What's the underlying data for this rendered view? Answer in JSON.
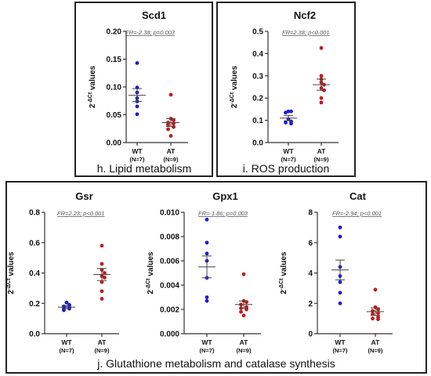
{
  "captions": {
    "h": "h. Lipid metabolism",
    "i": "i. ROS production",
    "j": "j. Glutathione metabolism and catalase synthesis"
  },
  "colors": {
    "wt": "#1a1adc",
    "at": "#c41a1a",
    "axis": "#333333",
    "text": "#111111"
  },
  "chart_data": [
    {
      "id": "scd1",
      "type": "scatter",
      "title": "Scd1",
      "ylabel_base": "2",
      "ylabel_sup": "-ΔCt",
      "ylabel_rest": " values",
      "annotation": "FR=-2.38; p=0.003",
      "ylim": [
        0,
        0.2
      ],
      "yticks": [
        0.0,
        0.05,
        0.1,
        0.15,
        0.2
      ],
      "ytick_labels": [
        "0.00",
        "0.05",
        "0.10",
        "0.15",
        "0.20"
      ],
      "groups": [
        {
          "name": "WT",
          "n_label": "(N=7)",
          "color_key": "wt",
          "mean": 0.085,
          "sem_low": 0.074,
          "sem_high": 0.097,
          "values": [
            0.143,
            0.099,
            0.09,
            0.08,
            0.074,
            0.065,
            0.051
          ]
        },
        {
          "name": "AT",
          "n_label": "(N=9)",
          "color_key": "at",
          "mean": 0.036,
          "sem_low": 0.029,
          "sem_high": 0.043,
          "values": [
            0.086,
            0.043,
            0.04,
            0.036,
            0.034,
            0.032,
            0.028,
            0.024,
            0.012
          ]
        }
      ]
    },
    {
      "id": "ncf2",
      "type": "scatter",
      "title": "Ncf2",
      "ylabel_base": "2",
      "ylabel_sup": "-ΔCt",
      "ylabel_rest": " values",
      "annotation": "FR=2.38; p<0.001",
      "ylim": [
        0,
        0.5
      ],
      "yticks": [
        0.0,
        0.1,
        0.2,
        0.3,
        0.4,
        0.5
      ],
      "ytick_labels": [
        "0.0",
        "0.1",
        "0.2",
        "0.3",
        "0.4",
        "0.5"
      ],
      "groups": [
        {
          "name": "WT",
          "n_label": "(N=7)",
          "color_key": "wt",
          "mean": 0.11,
          "sem_low": 0.098,
          "sem_high": 0.122,
          "values": [
            0.14,
            0.14,
            0.135,
            0.105,
            0.095,
            0.09,
            0.085
          ]
        },
        {
          "name": "AT",
          "n_label": "(N=9)",
          "color_key": "at",
          "mean": 0.26,
          "sem_low": 0.235,
          "sem_high": 0.285,
          "values": [
            0.425,
            0.3,
            0.285,
            0.27,
            0.26,
            0.245,
            0.235,
            0.2,
            0.18
          ]
        }
      ]
    },
    {
      "id": "gsr",
      "type": "scatter",
      "title": "Gsr",
      "ylabel_base": "2",
      "ylabel_sup": "-ΔCt",
      "ylabel_rest": " values",
      "annotation": "FR=2.23; p<0.001",
      "ylim": [
        0,
        0.8
      ],
      "yticks": [
        0.0,
        0.2,
        0.4,
        0.6,
        0.8
      ],
      "ytick_labels": [
        "0.0",
        "0.2",
        "0.4",
        "0.6",
        "0.8"
      ],
      "groups": [
        {
          "name": "WT",
          "n_label": "(N=7)",
          "color_key": "wt",
          "mean": 0.175,
          "sem_low": 0.165,
          "sem_high": 0.185,
          "values": [
            0.205,
            0.19,
            0.18,
            0.175,
            0.17,
            0.165,
            0.155
          ]
        },
        {
          "name": "AT",
          "n_label": "(N=9)",
          "color_key": "at",
          "mean": 0.39,
          "sem_low": 0.35,
          "sem_high": 0.43,
          "values": [
            0.58,
            0.46,
            0.42,
            0.4,
            0.38,
            0.37,
            0.34,
            0.28,
            0.23
          ]
        }
      ]
    },
    {
      "id": "gpx1",
      "type": "scatter",
      "title": "Gpx1",
      "ylabel_base": "2",
      "ylabel_sup": "-ΔCt",
      "ylabel_rest": " values",
      "annotation": "FR=-1.86; p=0.003",
      "ylim": [
        0,
        0.01
      ],
      "yticks": [
        0.0,
        0.002,
        0.004,
        0.006,
        0.008,
        0.01
      ],
      "ytick_labels": [
        "0.000",
        "0.002",
        "0.004",
        "0.006",
        "0.008",
        "0.010"
      ],
      "groups": [
        {
          "name": "WT",
          "n_label": "(N=7)",
          "color_key": "wt",
          "mean": 0.0055,
          "sem_low": 0.0046,
          "sem_high": 0.0064,
          "values": [
            0.0094,
            0.0075,
            0.0066,
            0.006,
            0.0046,
            0.003,
            0.0027
          ]
        },
        {
          "name": "AT",
          "n_label": "(N=9)",
          "color_key": "at",
          "mean": 0.0024,
          "sem_low": 0.0021,
          "sem_high": 0.0027,
          "values": [
            0.0049,
            0.0027,
            0.0026,
            0.0024,
            0.0022,
            0.0021,
            0.002,
            0.0018,
            0.0015
          ]
        }
      ]
    },
    {
      "id": "cat",
      "type": "scatter",
      "title": "Cat",
      "ylabel_base": "2",
      "ylabel_sup": "-ΔCt",
      "ylabel_rest": " values",
      "annotation": "FR=-2.94; p<0.001",
      "ylim": [
        0,
        8
      ],
      "yticks": [
        0,
        2,
        4,
        6,
        8
      ],
      "ytick_labels": [
        "0",
        "2",
        "4",
        "6",
        "8"
      ],
      "groups": [
        {
          "name": "WT",
          "n_label": "(N=7)",
          "color_key": "wt",
          "mean": 4.2,
          "sem_low": 3.55,
          "sem_high": 4.85,
          "values": [
            7.0,
            6.4,
            4.4,
            3.8,
            3.4,
            2.7,
            2.0
          ]
        },
        {
          "name": "AT",
          "n_label": "(N=9)",
          "color_key": "at",
          "mean": 1.45,
          "sem_low": 1.2,
          "sem_high": 1.7,
          "values": [
            2.9,
            1.75,
            1.6,
            1.5,
            1.35,
            1.3,
            1.1,
            1.0,
            0.95
          ]
        }
      ]
    }
  ]
}
